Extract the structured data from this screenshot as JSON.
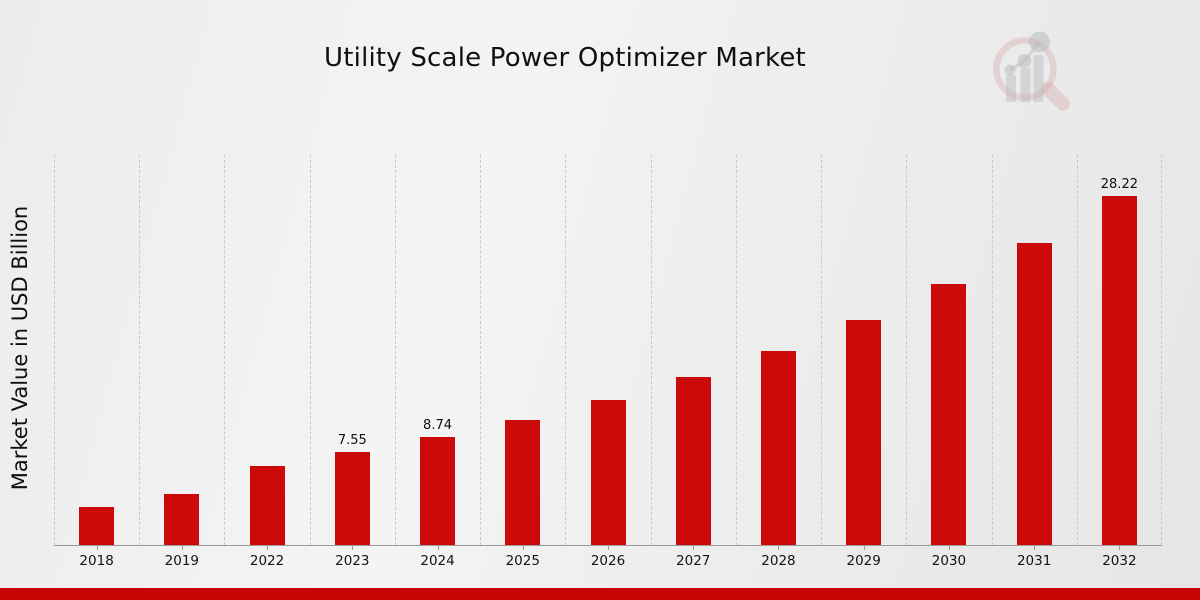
{
  "title": "Utility Scale Power Optimizer Market",
  "y_axis_label": "Market Value in USD Billion",
  "logo_icon": "magnifier-bar-chart-watermark",
  "colors": {
    "bar": "#cc0a0a",
    "footer_bar": "#c80404",
    "gridline": "#c9c9c9",
    "axis_line": "#9b9b9b",
    "text": "#101010",
    "logo_ring": "rgba(201,105,105,0.35)",
    "logo_bars": "rgba(144,149,158,0.5)"
  },
  "chart_data": {
    "type": "bar",
    "title": "Utility Scale Power Optimizer Market",
    "xlabel": "",
    "ylabel": "Market Value in USD Billion",
    "categories": [
      "2018",
      "2019",
      "2022",
      "2023",
      "2024",
      "2025",
      "2026",
      "2027",
      "2028",
      "2029",
      "2030",
      "2031",
      "2032"
    ],
    "values": [
      3.05,
      4.1,
      6.4,
      7.55,
      8.74,
      10.12,
      11.72,
      13.57,
      15.71,
      18.2,
      21.07,
      24.4,
      28.22
    ],
    "value_labels": [
      "",
      "",
      "",
      "7.55",
      "8.74",
      "",
      "",
      "",
      "",
      "",
      "",
      "",
      "28.22"
    ],
    "ylim": [
      0,
      31.5
    ],
    "grid": "vertical-dashed-between-categories",
    "legend": "none",
    "bar_color": "#cc0a0a"
  }
}
